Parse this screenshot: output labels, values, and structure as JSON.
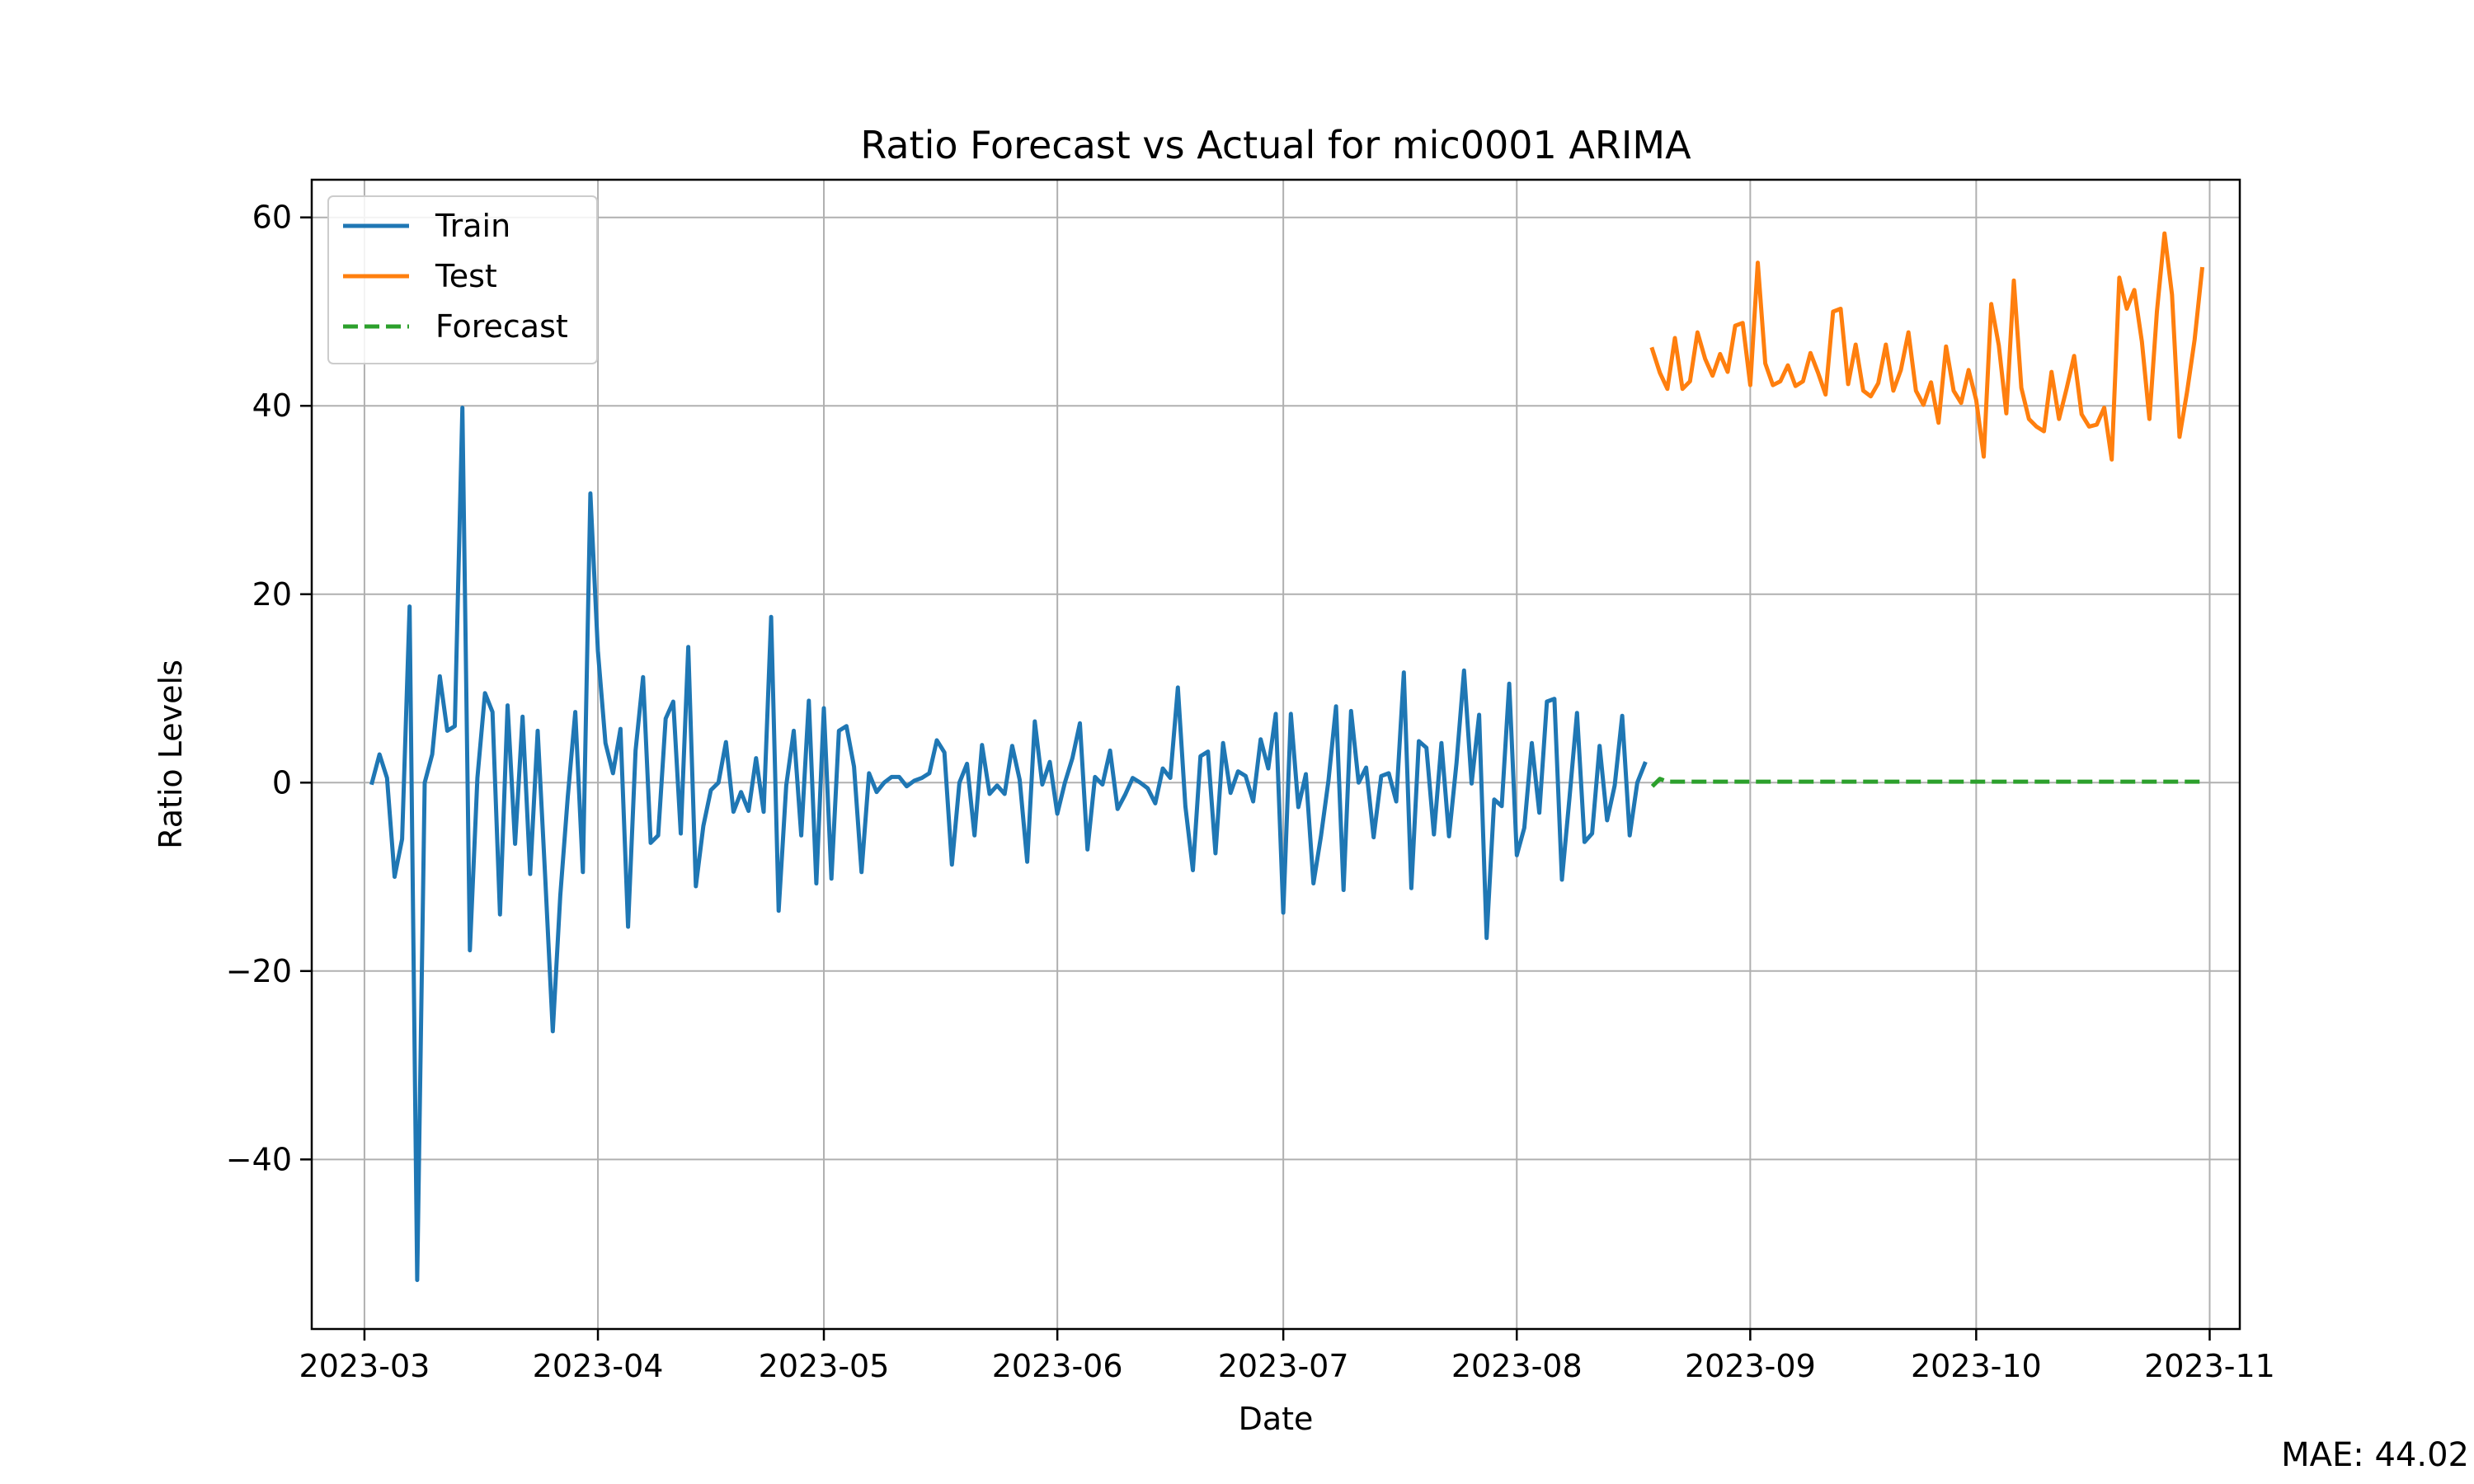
{
  "chart_data": {
    "type": "line",
    "title": "Ratio Forecast vs Actual for mic0001 ARIMA",
    "xlabel": "Date",
    "ylabel": "Ratio Levels",
    "xlim": [
      "2023-02-22",
      "2023-11-05"
    ],
    "ylim": [
      -58,
      64
    ],
    "x_ticks": [
      "2023-03-01",
      "2023-04-01",
      "2023-05-01",
      "2023-06-01",
      "2023-07-01",
      "2023-08-01",
      "2023-09-01",
      "2023-10-01",
      "2023-11-01"
    ],
    "x_tick_labels": [
      "2023-03",
      "2023-04",
      "2023-05",
      "2023-06",
      "2023-07",
      "2023-08",
      "2023-09",
      "2023-10",
      "2023-11"
    ],
    "y_ticks": [
      -40,
      -20,
      0,
      20,
      40,
      60
    ],
    "y_tick_labels": [
      "−40",
      "−20",
      "0",
      "20",
      "40",
      "60"
    ],
    "grid": true,
    "legend_position": "top-left",
    "series": [
      {
        "name": "Train",
        "color": "#1f77b4",
        "style": "solid",
        "start": "2023-03-02",
        "values": [
          0,
          3,
          0.5,
          -10,
          -6,
          18.7,
          -52.8,
          0,
          3,
          11.3,
          5.5,
          6,
          39.8,
          -17.8,
          0.5,
          9.5,
          7.5,
          -14,
          8.2,
          -6.5,
          7,
          -9.7,
          5.5,
          -10,
          -26.4,
          -12,
          -1.5,
          7.5,
          -9.5,
          30.7,
          14,
          4.2,
          1,
          5.7,
          -15.3,
          3.4,
          11.2,
          -6.4,
          -5.6,
          6.8,
          8.6,
          -5.4,
          14.4,
          -11,
          -4.6,
          -0.8,
          0,
          4.3,
          -3.1,
          -1,
          -3,
          2.6,
          -3.1,
          17.6,
          -13.6,
          -0.3,
          5.5,
          -5.6,
          8.7,
          -10.7,
          7.9,
          -10.2,
          5.5,
          6,
          1.7,
          -9.5,
          1,
          -1,
          0,
          0.6,
          0.6,
          -0.4,
          0.2,
          0.5,
          1,
          4.5,
          3.2,
          -8.7,
          0,
          2,
          -5.6,
          4,
          -1.2,
          -0.3,
          -1.2,
          3.9,
          0.3,
          -8.4,
          6.5,
          -0.2,
          2.2,
          -3.3,
          0,
          2.6,
          6.3,
          -7.1,
          0.6,
          -0.2,
          3.4,
          -2.8,
          -1.3,
          0.5,
          0,
          -0.6,
          -2.2,
          1.5,
          0.5,
          10.1,
          -2.5,
          -9.3,
          2.8,
          3.3,
          -7.5,
          4.2,
          -1.1,
          1.2,
          0.7,
          -2,
          4.6,
          1.5,
          7.3,
          -13.8,
          7.3,
          -2.6,
          0.9,
          -10.7,
          -5.7,
          0.2,
          8.1,
          -11.4,
          7.6,
          0,
          1.6,
          -5.8,
          0.7,
          1,
          -2,
          11.7,
          -11.2,
          4.4,
          3.7,
          -5.5,
          4.2,
          -5.7,
          2.1,
          11.9,
          -0.1,
          7.2,
          -16.5,
          -1.8,
          -2.5,
          10.5,
          -7.7,
          -4.8,
          4.2,
          -3.2,
          8.6,
          8.9,
          -10.3,
          -1.6,
          7.4,
          -6.3,
          -5.4,
          3.9,
          -4,
          -0.3,
          7.1,
          -5.6,
          0,
          2
        ]
      },
      {
        "name": "Test",
        "color": "#ff7f0e",
        "style": "solid",
        "start": "2023-08-19",
        "values": [
          46,
          43.5,
          41.8,
          47.2,
          41.8,
          42.6,
          47.8,
          45,
          43.2,
          45.5,
          43.6,
          48.5,
          48.8,
          42.2,
          55.2,
          44.5,
          42.2,
          42.6,
          44.3,
          42.1,
          42.6,
          45.6,
          43.5,
          41.2,
          50,
          50.3,
          42.3,
          46.5,
          41.6,
          41,
          42.4,
          46.5,
          41.6,
          43.8,
          47.8,
          41.6,
          40.1,
          42.5,
          38.2,
          46.3,
          41.6,
          40.3,
          43.8,
          40.6,
          34.6,
          50.8,
          46.4,
          39.2,
          53.3,
          41.9,
          38.6,
          37.8,
          37.3,
          43.6,
          38.6,
          41.8,
          45.3,
          39.1,
          37.8,
          38,
          39.8,
          34.3,
          53.6,
          50.3,
          52.3,
          46.8,
          38.6,
          50,
          58.3,
          51.8,
          36.7,
          41.5,
          47,
          54.5
        ]
      },
      {
        "name": "Forecast",
        "color": "#2ca02c",
        "style": "dashed",
        "start": "2023-08-19",
        "values": [
          -0.4,
          0.4,
          0.1,
          0.1,
          0.1,
          0.1,
          0.1,
          0.1,
          0.1,
          0.1,
          0.1,
          0.1,
          0.1,
          0.1,
          0.1,
          0.1,
          0.1,
          0.1,
          0.1,
          0.1,
          0.1,
          0.1,
          0.1,
          0.1,
          0.1,
          0.1,
          0.1,
          0.1,
          0.1,
          0.1,
          0.1,
          0.1,
          0.1,
          0.1,
          0.1,
          0.1,
          0.1,
          0.1,
          0.1,
          0.1,
          0.1,
          0.1,
          0.1,
          0.1,
          0.1,
          0.1,
          0.1,
          0.1,
          0.1,
          0.1,
          0.1,
          0.1,
          0.1,
          0.1,
          0.1,
          0.1,
          0.1,
          0.1,
          0.1,
          0.1,
          0.1,
          0.1,
          0.1,
          0.1,
          0.1,
          0.1,
          0.1,
          0.1,
          0.1,
          0.1,
          0.1,
          0.1,
          0.1,
          0.1
        ]
      }
    ]
  },
  "mae_text": "MAE: 44.02"
}
